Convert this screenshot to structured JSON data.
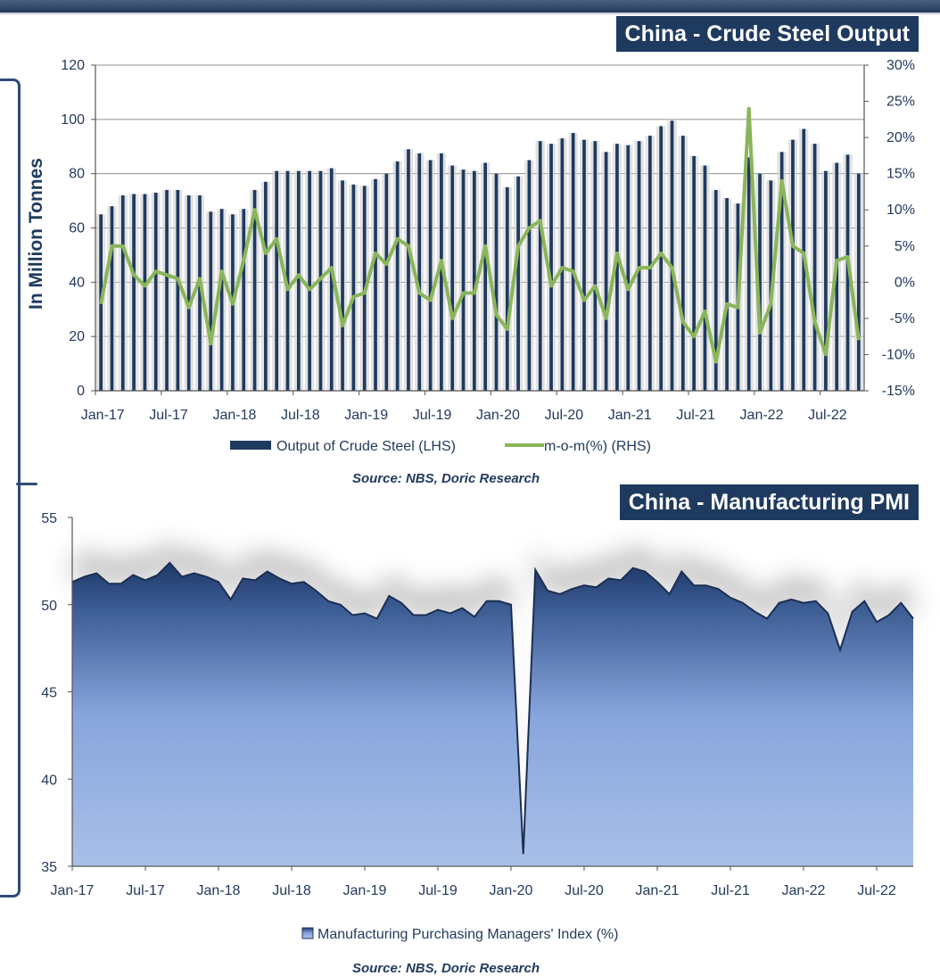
{
  "chart_data": [
    {
      "type": "bar+line",
      "title": "China - Crude Steel Output",
      "ylabel": "In Million Tonnes",
      "ylim": [
        0,
        120
      ],
      "yticks": [
        0,
        20,
        40,
        60,
        80,
        100,
        120
      ],
      "y2lim": [
        -15,
        30
      ],
      "y2ticks": [
        "-15%",
        "-10%",
        "-5%",
        "0%",
        "5%",
        "10%",
        "15%",
        "20%",
        "25%",
        "30%"
      ],
      "xlabels": [
        "Jan-17",
        "Jul-17",
        "Jan-18",
        "Jul-18",
        "Jan-19",
        "Jul-19",
        "Jan-20",
        "Jul-20",
        "Jan-21",
        "Jul-21",
        "Jan-22",
        "Jul-22"
      ],
      "series": [
        {
          "name": "Output of Crude Steel (LHS)",
          "color": "#1f3a5f",
          "axis": "left",
          "values": [
            65,
            68,
            72,
            72.5,
            72.5,
            73,
            74,
            74,
            72,
            72,
            66,
            67,
            65,
            67,
            74,
            77,
            81,
            81,
            81,
            81,
            81,
            82,
            77.5,
            76,
            75.5,
            78,
            80,
            84.5,
            89,
            87.5,
            85,
            87.5,
            83,
            81.5,
            81,
            84,
            80,
            75,
            79,
            85,
            92,
            91,
            93,
            95,
            92.5,
            92,
            88,
            91,
            90.5,
            92,
            94,
            97.5,
            99.5,
            94,
            86.5,
            83,
            74,
            71,
            69,
            86,
            80,
            77.5,
            88,
            92.5,
            96.5,
            91,
            81,
            84,
            87,
            80
          ]
        },
        {
          "name": "m-o-m(%) (RHS)",
          "color": "#8ab55a",
          "axis": "right",
          "values": [
            -3,
            5,
            5,
            1,
            -0.5,
            1.5,
            1,
            0.5,
            -3.5,
            0.5,
            -8.5,
            1.5,
            -3,
            3,
            10,
            4,
            6,
            -1,
            1,
            -1,
            0.5,
            2,
            -6,
            -2,
            -1.5,
            4,
            2.5,
            6,
            5,
            -1.5,
            -2.5,
            3,
            -5,
            -1.5,
            -1.5,
            5,
            -4.5,
            -6.5,
            5,
            7.5,
            8.5,
            -0.5,
            2,
            1.5,
            -2.5,
            -0.5,
            -5,
            4,
            -1,
            2,
            2,
            4,
            2,
            -5.5,
            -7.5,
            -4,
            -11,
            -3,
            -3.5,
            24,
            -7,
            -3,
            14,
            5,
            4,
            -5.5,
            -10,
            3,
            3.5,
            -8
          ]
        }
      ]
    },
    {
      "type": "area",
      "title": "China - Manufacturing PMI",
      "ylim": [
        35,
        55
      ],
      "yticks": [
        35,
        40,
        45,
        50,
        55
      ],
      "xlabels": [
        "Jan-17",
        "Jul-17",
        "Jan-18",
        "Jul-18",
        "Jan-19",
        "Jul-19",
        "Jan-20",
        "Jul-20",
        "Jan-21",
        "Jul-21",
        "Jan-22",
        "Jul-22"
      ],
      "series": [
        {
          "name": "Manufacturing Purchasing Managers' Index (%)",
          "color": "#1f3a5f",
          "values": [
            51.3,
            51.6,
            51.8,
            51.2,
            51.2,
            51.7,
            51.4,
            51.7,
            52.4,
            51.6,
            51.8,
            51.6,
            51.3,
            50.3,
            51.5,
            51.4,
            51.9,
            51.5,
            51.2,
            51.3,
            50.8,
            50.2,
            50.0,
            49.4,
            49.5,
            49.2,
            50.5,
            50.1,
            49.4,
            49.4,
            49.7,
            49.5,
            49.8,
            49.3,
            50.2,
            50.2,
            50.0,
            35.7,
            52.0,
            50.8,
            50.6,
            50.9,
            51.1,
            51.0,
            51.5,
            51.4,
            52.1,
            51.9,
            51.3,
            50.6,
            51.9,
            51.1,
            51.1,
            50.9,
            50.4,
            50.1,
            49.6,
            49.2,
            50.1,
            50.3,
            50.1,
            50.2,
            49.5,
            47.4,
            49.6,
            50.2,
            49.0,
            49.4,
            50.1,
            49.2
          ]
        }
      ]
    }
  ],
  "legend": {
    "steel_bar": "Output of Crude Steel (LHS)",
    "steel_line": "m-o-m(%) (RHS)",
    "pmi": "Manufacturing Purchasing Managers' Index (%)"
  },
  "source": "Source: NBS, Doric Research"
}
